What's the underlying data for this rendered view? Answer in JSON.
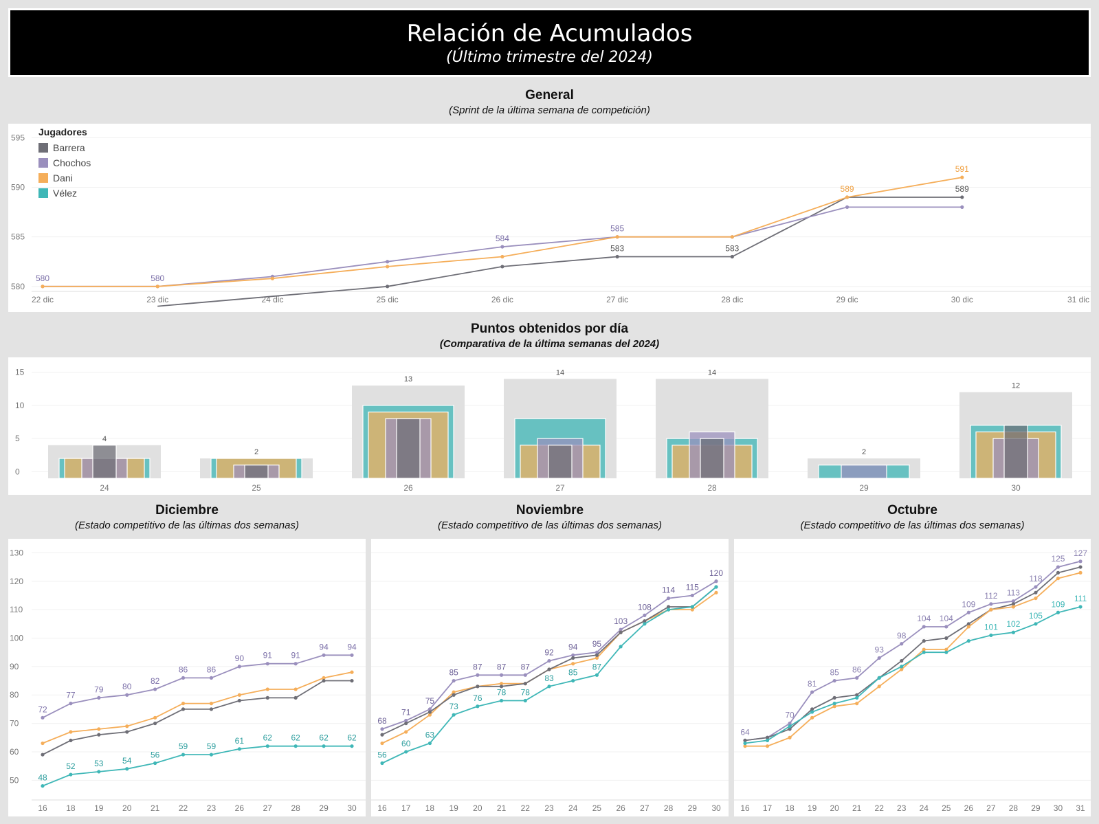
{
  "header": {
    "title": "Relación de Acumulados",
    "subtitle": "(Último trimestre del 2024)"
  },
  "colors": {
    "Barrera": "#6e6e76",
    "Chochos": "#9a8fbd",
    "Dani": "#f5ae5a",
    "Vélez": "#3fb7b7",
    "bar_background": "#e0e0e0"
  },
  "general": {
    "title": "General",
    "subtitle": "(Sprint de la última semana de competición)"
  },
  "legend": {
    "title": "Jugadores",
    "items": [
      "Barrera",
      "Chochos",
      "Dani",
      "Vélez"
    ]
  },
  "daily": {
    "title": "Puntos obtenidos por día",
    "subtitle": "(Comparativa de la última semanas del 2024)"
  },
  "months": [
    {
      "title": "Diciembre",
      "subtitle": "(Estado competitivo de las últimas dos semanas)"
    },
    {
      "title": "Noviembre",
      "subtitle": "(Estado competitivo de las últimas dos semanas)"
    },
    {
      "title": "Octubre",
      "subtitle": "(Estado competitivo de las últimas dos semanas)"
    }
  ],
  "chart_data": [
    {
      "id": "general",
      "type": "line",
      "x": [
        "22 dic",
        "23 dic",
        "24 dic",
        "25 dic",
        "26 dic",
        "27 dic",
        "28 dic",
        "29 dic",
        "30 dic",
        "31 dic"
      ],
      "yticks": [
        580,
        585,
        590,
        595
      ],
      "ylim": [
        579.5,
        596
      ],
      "series": [
        {
          "name": "Barrera",
          "values": [
            null,
            578,
            579,
            580,
            582,
            583,
            583,
            589,
            589,
            null
          ],
          "labels": [
            null,
            null,
            null,
            null,
            null,
            583,
            583,
            null,
            589,
            null
          ],
          "label_color": "#555555"
        },
        {
          "name": "Chochos",
          "values": [
            580,
            580,
            581,
            582.5,
            584,
            585,
            585,
            588,
            588,
            null
          ],
          "labels": [
            580,
            580,
            null,
            null,
            584,
            585,
            null,
            null,
            null,
            null
          ],
          "label_color": "#7b6fa8"
        },
        {
          "name": "Dani",
          "values": [
            580,
            580,
            580.8,
            582,
            583,
            585,
            585,
            589,
            591,
            null
          ],
          "labels": [
            null,
            null,
            null,
            null,
            null,
            null,
            null,
            589,
            591,
            null
          ],
          "label_color": "#f0a040"
        }
      ]
    },
    {
      "id": "daily",
      "type": "bar",
      "categories": [
        "24",
        "25",
        "26",
        "27",
        "28",
        "29",
        "30"
      ],
      "yticks": [
        0,
        5,
        10,
        15
      ],
      "ylim": [
        -1,
        16
      ],
      "totals": [
        4,
        2,
        13,
        14,
        14,
        2,
        12
      ],
      "series": [
        {
          "name": "Vélez",
          "values": [
            2,
            2,
            10,
            8,
            5,
            1,
            7
          ]
        },
        {
          "name": "Dani",
          "values": [
            2,
            2,
            9,
            4,
            4,
            0,
            6
          ]
        },
        {
          "name": "Chochos",
          "values": [
            2,
            1,
            8,
            5,
            6,
            1,
            5
          ]
        },
        {
          "name": "Barrera",
          "values": [
            4,
            1,
            8,
            4,
            5,
            0,
            7
          ]
        }
      ]
    },
    {
      "id": "diciembre",
      "type": "line",
      "x": [
        "16",
        "18",
        "19",
        "20",
        "21",
        "22",
        "23",
        "26",
        "27",
        "28",
        "29",
        "30"
      ],
      "yticks": [
        50,
        60,
        70,
        80,
        90,
        100,
        110,
        120,
        130
      ],
      "ylim": [
        45,
        133
      ],
      "series": [
        {
          "name": "Chochos",
          "values": [
            72,
            77,
            79,
            80,
            82,
            86,
            86,
            90,
            91,
            91,
            94,
            94
          ],
          "labeled": true,
          "label_color": "#7b6fa8"
        },
        {
          "name": "Dani",
          "values": [
            63,
            67,
            68,
            69,
            72,
            77,
            77,
            80,
            82,
            82,
            86,
            88
          ]
        },
        {
          "name": "Barrera",
          "values": [
            59,
            64,
            66,
            67,
            70,
            75,
            75,
            78,
            79,
            79,
            85,
            85
          ]
        },
        {
          "name": "Vélez",
          "values": [
            48,
            52,
            53,
            54,
            56,
            59,
            59,
            61,
            62,
            62,
            62,
            62
          ],
          "labeled": true,
          "label_color": "#2a9d9d"
        }
      ]
    },
    {
      "id": "noviembre",
      "type": "line",
      "x": [
        "16",
        "17",
        "18",
        "19",
        "20",
        "21",
        "22",
        "23",
        "24",
        "25",
        "26",
        "27",
        "28",
        "29",
        "30"
      ],
      "yticks": [
        50,
        60,
        70,
        80,
        90,
        100,
        110,
        120,
        130
      ],
      "ylim": [
        45,
        133
      ],
      "series": [
        {
          "name": "Chochos",
          "values": [
            68,
            71,
            75,
            85,
            87,
            87,
            87,
            92,
            94,
            95,
            103,
            108,
            114,
            115,
            120
          ],
          "labeled": true,
          "label_color": "#6e6298"
        },
        {
          "name": "Dani",
          "values": [
            63,
            67,
            73,
            81,
            83,
            84,
            84,
            89,
            91,
            93,
            102,
            106,
            110,
            110,
            116
          ]
        },
        {
          "name": "Barrera",
          "values": [
            66,
            70,
            74,
            80,
            83,
            83,
            84,
            89,
            93,
            94,
            102,
            106,
            111,
            111,
            118
          ]
        },
        {
          "name": "Vélez",
          "values": [
            56,
            60,
            63,
            73,
            76,
            78,
            78,
            83,
            85,
            87,
            97,
            105,
            110,
            111,
            118
          ],
          "labels": [
            56,
            60,
            63,
            73,
            76,
            78,
            78,
            83,
            85,
            87,
            null,
            null,
            null,
            null,
            null
          ],
          "label_color": "#2a9d9d"
        }
      ]
    },
    {
      "id": "octubre",
      "type": "line",
      "x": [
        "16",
        "17",
        "18",
        "19",
        "20",
        "21",
        "22",
        "23",
        "24",
        "25",
        "26",
        "27",
        "28",
        "29",
        "30",
        "31"
      ],
      "yticks": [
        50,
        60,
        70,
        80,
        90,
        100,
        110,
        120,
        130
      ],
      "ylim": [
        45,
        133
      ],
      "series": [
        {
          "name": "Chochos",
          "values": [
            64,
            65,
            70,
            81,
            85,
            86,
            93,
            98,
            104,
            104,
            109,
            112,
            113,
            118,
            125,
            127
          ],
          "labels": [
            64,
            null,
            70,
            81,
            85,
            86,
            93,
            98,
            104,
            104,
            109,
            112,
            113,
            118,
            125,
            127
          ],
          "label_color": "#8a80b0"
        },
        {
          "name": "Barrera",
          "values": [
            64,
            65,
            68,
            75,
            79,
            80,
            86,
            92,
            99,
            100,
            105,
            110,
            112,
            116,
            123,
            125
          ]
        },
        {
          "name": "Dani",
          "values": [
            62,
            62,
            65,
            72,
            76,
            77,
            83,
            89,
            96,
            96,
            104,
            110,
            111,
            114,
            121,
            123
          ]
        },
        {
          "name": "Vélez",
          "values": [
            63,
            64,
            69,
            74,
            77,
            79,
            86,
            90,
            95,
            95,
            99,
            101,
            102,
            105,
            109,
            111
          ],
          "labels": [
            null,
            null,
            null,
            null,
            null,
            null,
            null,
            null,
            null,
            null,
            null,
            101,
            102,
            105,
            109,
            111
          ],
          "label_color": "#3fb7b7"
        }
      ]
    }
  ]
}
